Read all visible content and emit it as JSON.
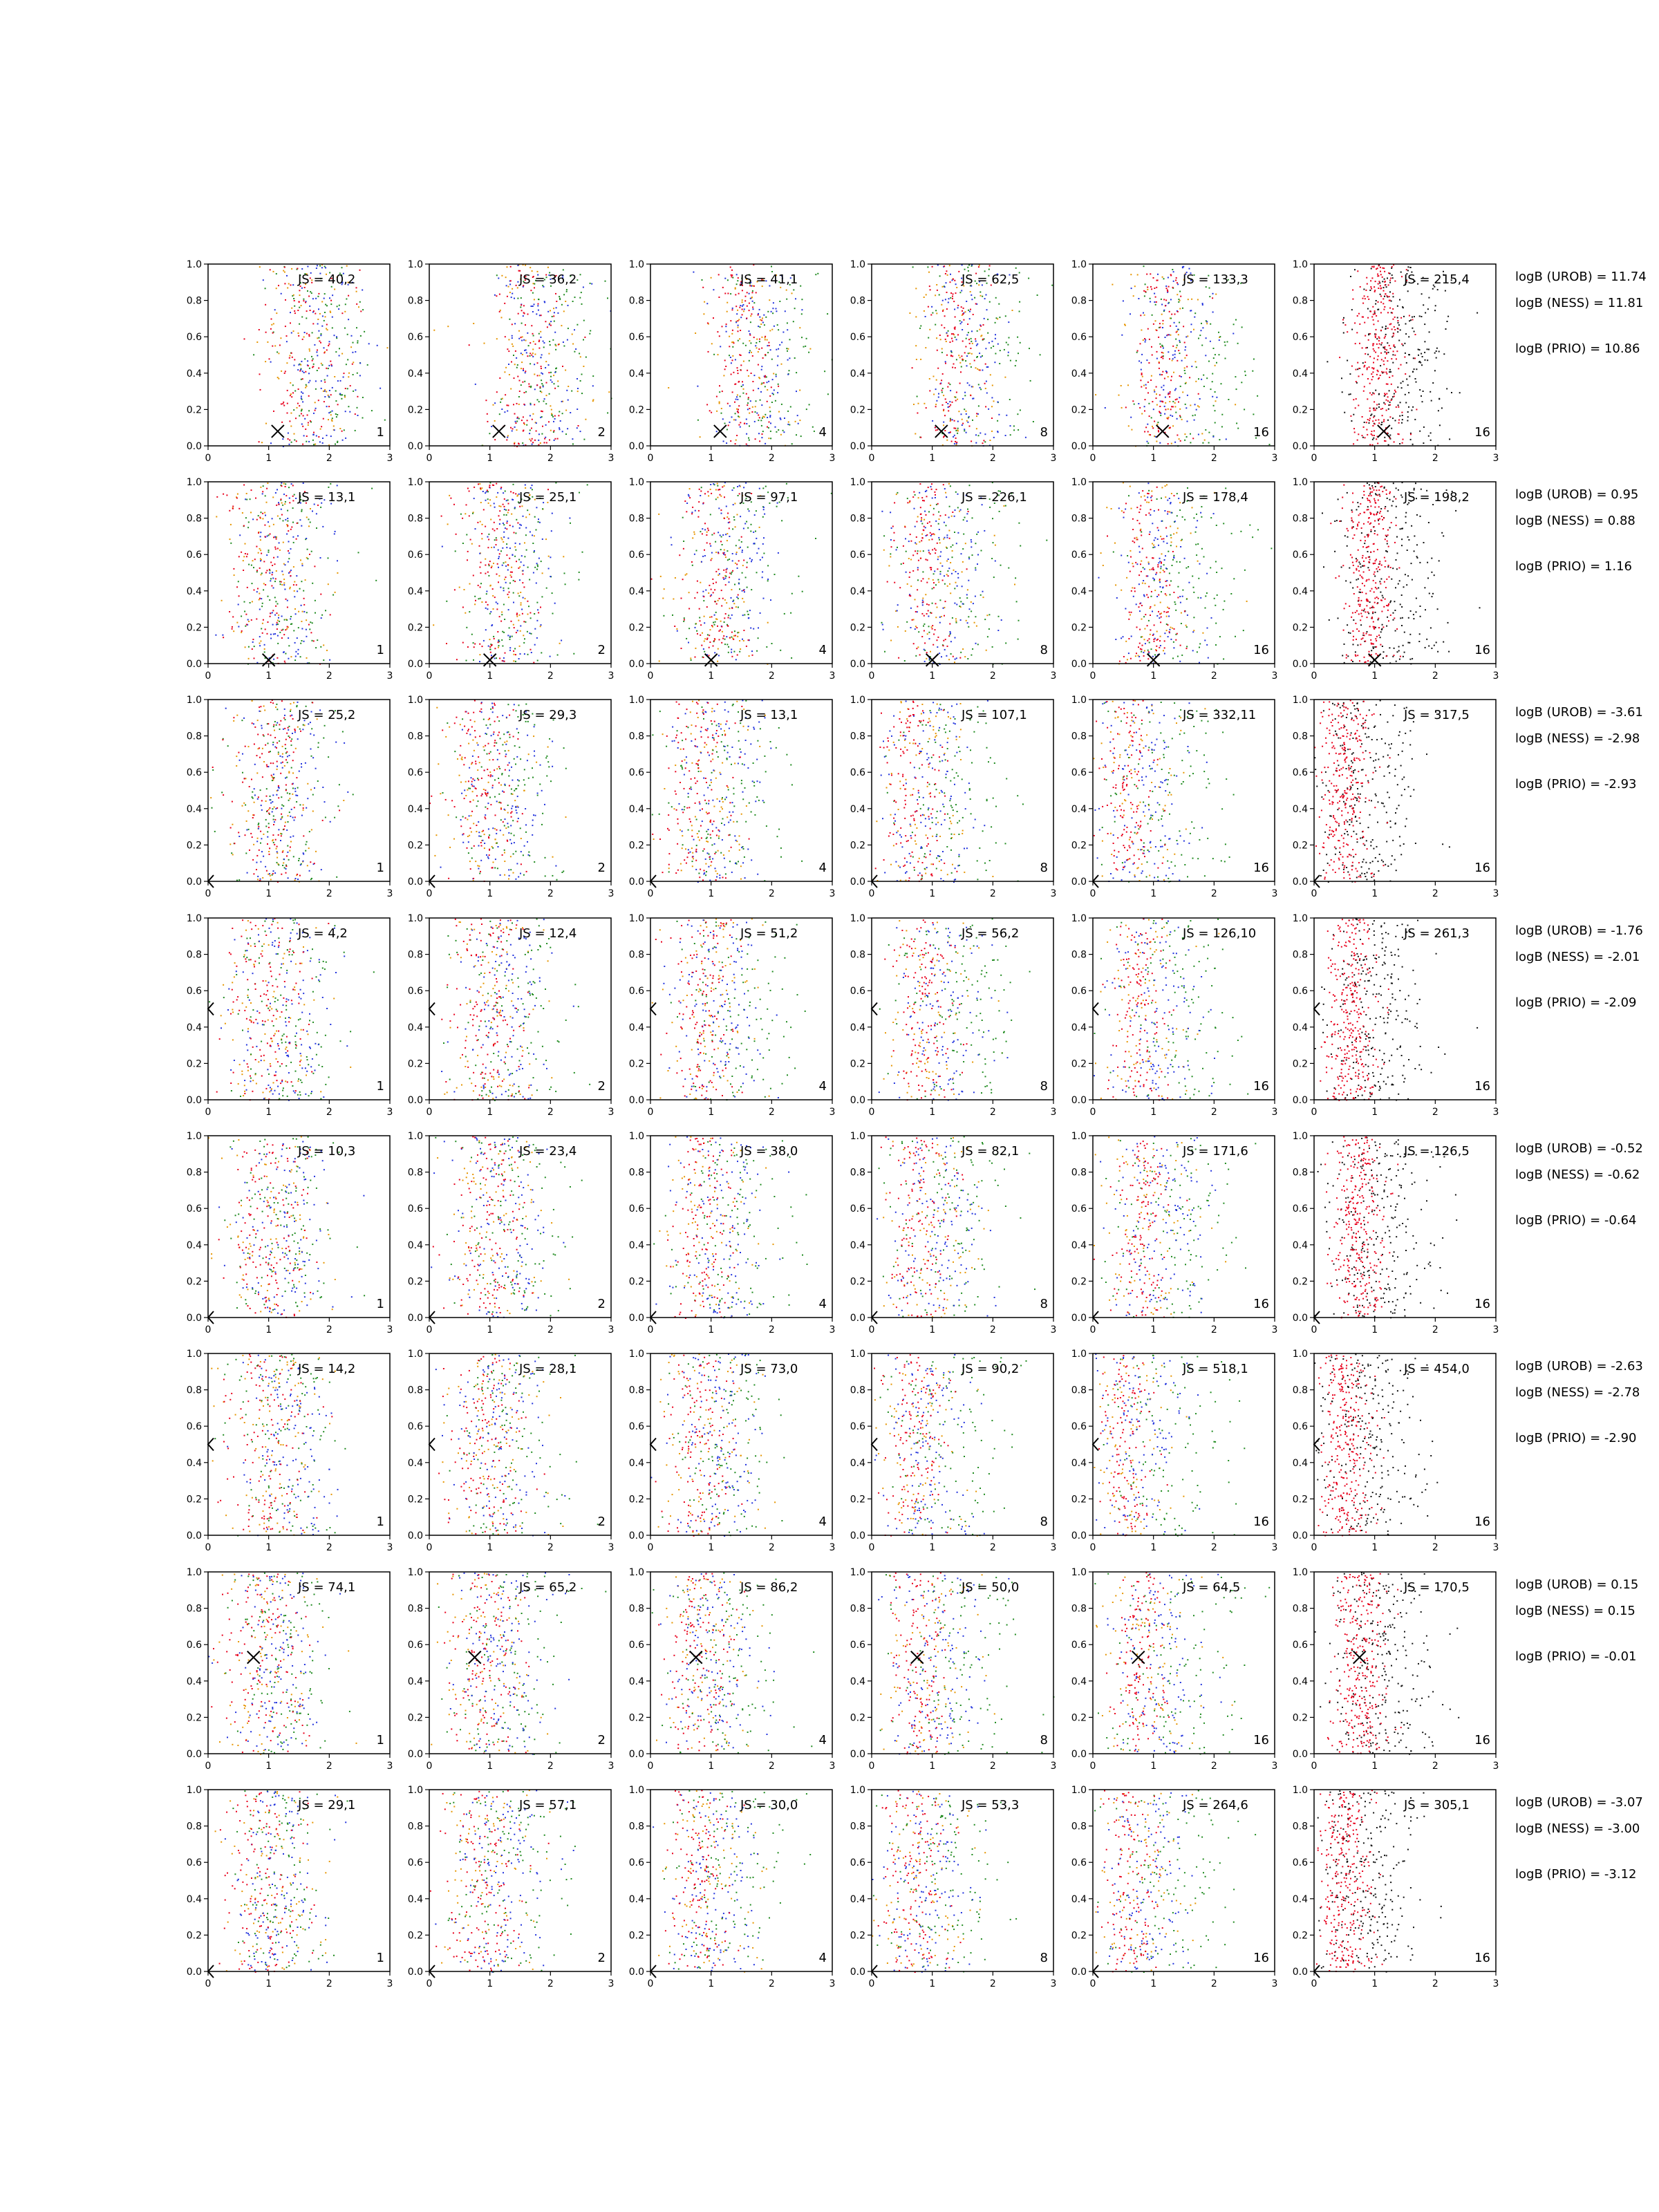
{
  "chart_data": {
    "type": "scatter",
    "title": "",
    "xlabel": "",
    "ylabel": "",
    "xlim": [
      0,
      3
    ],
    "ylim": [
      0,
      1
    ],
    "xticks": [
      "0",
      "1",
      "2",
      "3"
    ],
    "yticks": [
      "0.0",
      "0.2",
      "0.4",
      "0.6",
      "0.8",
      "1.0"
    ],
    "columns": [
      "1",
      "2",
      "4",
      "8",
      "16",
      "16"
    ],
    "rows": [
      {
        "js": [
          "JS = 40,2",
          "JS = 36,2",
          "JS = 41,1",
          "JS = 62,5",
          "JS = 133,3",
          "JS = 215,4"
        ],
        "marker": {
          "shape": "x",
          "x": 1.15,
          "y": 0.08
        },
        "centers": [
          1.6,
          1.6,
          1.5,
          1.35,
          1.1,
          1.05
        ],
        "logB": [
          "logB (UROB) = 11.74",
          "logB (NESS) = 11.81",
          "logB (PRIO) = 10.86"
        ]
      },
      {
        "js": [
          "JS = 13,1",
          "JS = 25,1",
          "JS = 97,1",
          "JS = 226,1",
          "JS = 178,4",
          "JS = 198,2"
        ],
        "marker": {
          "shape": "x",
          "x": 1.0,
          "y": 0.02
        },
        "centers": [
          1.0,
          1.1,
          1.0,
          0.9,
          0.9,
          0.9
        ],
        "logB": [
          "logB (UROB) = 0.95",
          "logB (NESS) = 0.88",
          "logB (PRIO) = 1.16"
        ]
      },
      {
        "js": [
          "JS = 25,2",
          "JS = 29,3",
          "JS = 13,1",
          "JS = 107,1",
          "JS = 332,11",
          "JS = 317,5"
        ],
        "marker": {
          "shape": "<",
          "x": 0.0,
          "y": 0.0
        },
        "centers": [
          1.0,
          0.9,
          0.8,
          0.7,
          0.6,
          0.5
        ],
        "logB": [
          "logB (UROB) = -3.61",
          "logB (NESS) = -2.98",
          "logB (PRIO) = -2.93"
        ]
      },
      {
        "js": [
          "JS = 4,2",
          "JS = 12,4",
          "JS = 51,2",
          "JS = 56,2",
          "JS = 126,10",
          "JS = 261,3"
        ],
        "marker": {
          "shape": "<",
          "x": 0.0,
          "y": 0.5
        },
        "centers": [
          1.0,
          1.0,
          0.9,
          0.85,
          0.75,
          0.6
        ],
        "logB": [
          "logB (UROB) = -1.76",
          "logB (NESS) = -2.01",
          "logB (PRIO) = -2.09"
        ]
      },
      {
        "js": [
          "JS = 10,3",
          "JS = 23,4",
          "JS = 38,0",
          "JS = 82,1",
          "JS = 171,6",
          "JS = 126,5"
        ],
        "marker": {
          "shape": "<",
          "x": 0.0,
          "y": 0.0
        },
        "centers": [
          1.0,
          0.95,
          0.85,
          0.8,
          0.8,
          0.7
        ],
        "logB": [
          "logB (UROB) = -0.52",
          "logB (NESS) = -0.62",
          "logB (PRIO) = -0.64"
        ]
      },
      {
        "js": [
          "JS = 14,2",
          "JS = 28,1",
          "JS = 73,0",
          "JS = 90,2",
          "JS = 518,1",
          "JS = 454,0"
        ],
        "marker": {
          "shape": "<",
          "x": 0.0,
          "y": 0.5
        },
        "centers": [
          1.0,
          0.9,
          0.8,
          0.7,
          0.5,
          0.5
        ],
        "logB": [
          "logB (UROB) = -2.63",
          "logB (NESS) = -2.78",
          "logB (PRIO) = -2.90"
        ]
      },
      {
        "js": [
          "JS = 74,1",
          "JS = 65,2",
          "JS = 86,2",
          "JS = 50,0",
          "JS = 64,5",
          "JS = 170,5"
        ],
        "marker": {
          "shape": "x",
          "x": 0.75,
          "y": 0.53
        },
        "centers": [
          0.9,
          0.9,
          0.8,
          0.8,
          0.75,
          0.75
        ],
        "logB": [
          "logB (UROB) = 0.15",
          "logB (NESS) = 0.15",
          "logB (PRIO) = -0.01"
        ]
      },
      {
        "js": [
          "JS = 29,1",
          "JS = 57,1",
          "JS = 30,0",
          "JS = 53,3",
          "JS = 264,6",
          "JS = 305,1"
        ],
        "marker": {
          "shape": "<",
          "x": 0.0,
          "y": 0.0
        },
        "centers": [
          0.9,
          0.9,
          0.8,
          0.7,
          0.6,
          0.5
        ],
        "logB": [
          "logB (UROB) = -3.07",
          "logB (NESS) = -3.00",
          "logB (PRIO) = -3.12"
        ]
      }
    ],
    "series_colors": {
      "red": "#e8001c",
      "green": "#1f8a1f",
      "blue": "#2233dd",
      "orange": "#e69500",
      "black": "#111111"
    }
  }
}
